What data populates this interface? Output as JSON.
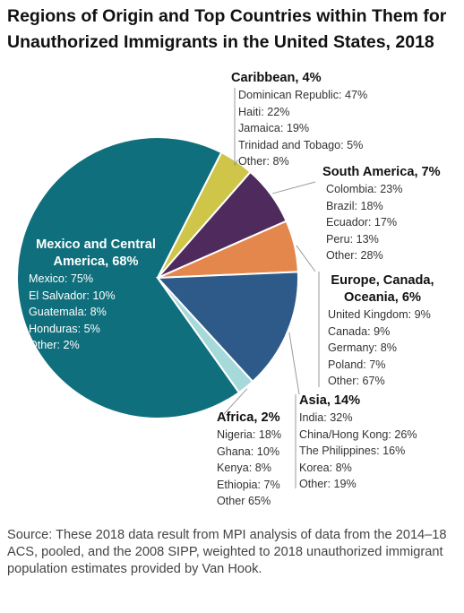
{
  "title": "Regions of Origin and Top Countries within Them for Unauthorized Immigrants in the United States, 2018",
  "source": "Source: These 2018 data result from MPI analysis of data from the 2014–18 ACS, pooled, and the 2008 SIPP, weighted to 2018 unauthorized immigrant population estimates provided by Van Hook.",
  "chart_data": {
    "type": "pie",
    "title": "Regions of Origin and Top Countries within Them for Unauthorized Immigrants in the United States, 2018",
    "slices": [
      {
        "label": "Mexico and Central America",
        "value": 68,
        "head": "Mexico and Central America, 68%",
        "color": "#0f6f7c",
        "countries": [
          "Mexico: 75%",
          "El Salvador: 10%",
          "Guatemala: 8%",
          "Honduras: 5%",
          "Other: 2%"
        ]
      },
      {
        "label": "Caribbean",
        "value": 4,
        "head": "Caribbean, 4%",
        "color": "#cfc548",
        "countries": [
          "Dominican Republic: 47%",
          "Haiti: 22%",
          "Jamaica: 19%",
          "Trinidad and Tobago: 5%",
          "Other: 8%"
        ]
      },
      {
        "label": "South America",
        "value": 7,
        "head": "South America, 7%",
        "color": "#4e2a5d",
        "countries": [
          "Colombia: 23%",
          "Brazil: 18%",
          "Ecuador: 17%",
          "Peru: 13%",
          "Other: 28%"
        ]
      },
      {
        "label": "Europe, Canada, Oceania",
        "value": 6,
        "head": "Europe, Canada, Oceania, 6%",
        "color": "#e4874c",
        "countries": [
          "United Kingdom: 9%",
          "Canada: 9%",
          "Germany: 8%",
          "Poland: 7%",
          "Other: 67%"
        ]
      },
      {
        "label": "Asia",
        "value": 14,
        "head": "Asia, 14%",
        "color": "#2e5a8a",
        "countries": [
          "India: 32%",
          "China/Hong Kong: 26%",
          "The Philippines: 16%",
          "Korea: 8%",
          "Other: 19%"
        ]
      },
      {
        "label": "Africa",
        "value": 2,
        "head": "Africa, 2%",
        "color": "#a6d9d9",
        "countries": [
          "Nigeria: 18%",
          "Ghana: 10%",
          "Kenya: 8%",
          "Ethiopia: 7%",
          "Other 65%"
        ]
      }
    ]
  }
}
